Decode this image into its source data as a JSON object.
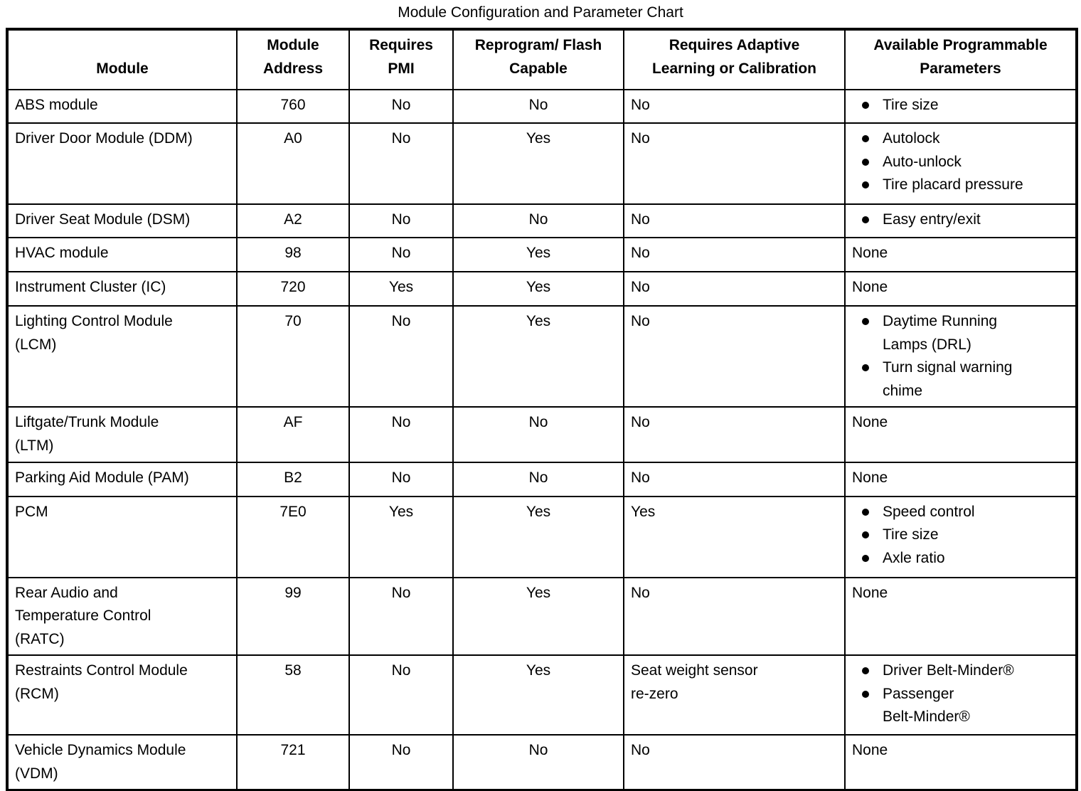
{
  "title": "Module Configuration and Parameter Chart",
  "table": {
    "headers": [
      "Module",
      "Module\nAddress",
      "Requires\nPMI",
      "Reprogram/ Flash\nCapable",
      "Requires Adaptive\nLearning or Calibration",
      "Available Programmable\nParameters"
    ],
    "rows": [
      {
        "module": "ABS module",
        "address": "760",
        "pmi": "No",
        "flash": "No",
        "adaptive": "No",
        "params": [
          "Tire size"
        ]
      },
      {
        "module": "Driver Door Module (DDM)",
        "address": "A0",
        "pmi": "No",
        "flash": "Yes",
        "adaptive": "No",
        "params": [
          "Autolock",
          "Auto-unlock",
          "Tire placard pressure"
        ]
      },
      {
        "module": "Driver Seat Module (DSM)",
        "address": "A2",
        "pmi": "No",
        "flash": "No",
        "adaptive": "No",
        "params": [
          "Easy entry/exit"
        ]
      },
      {
        "module": "HVAC module",
        "address": "98",
        "pmi": "No",
        "flash": "Yes",
        "adaptive": "No",
        "params": "None"
      },
      {
        "module": "Instrument Cluster (IC)",
        "address": "720",
        "pmi": "Yes",
        "flash": "Yes",
        "adaptive": "No",
        "params": "None"
      },
      {
        "module": "Lighting Control Module\n(LCM)",
        "address": "70",
        "pmi": "No",
        "flash": "Yes",
        "adaptive": "No",
        "params": [
          "Daytime Running\nLamps (DRL)",
          "Turn signal warning\nchime"
        ]
      },
      {
        "module": "Liftgate/Trunk Module\n(LTM)",
        "address": "AF",
        "pmi": "No",
        "flash": "No",
        "adaptive": "No",
        "params": "None"
      },
      {
        "module": "Parking Aid Module (PAM)",
        "address": "B2",
        "pmi": "No",
        "flash": "No",
        "adaptive": "No",
        "params": "None"
      },
      {
        "module": "PCM",
        "address": "7E0",
        "pmi": "Yes",
        "flash": "Yes",
        "adaptive": "Yes",
        "params": [
          "Speed control",
          "Tire size",
          "Axle ratio"
        ]
      },
      {
        "module": "Rear Audio and\nTemperature Control\n(RATC)",
        "address": "99",
        "pmi": "No",
        "flash": "Yes",
        "adaptive": "No",
        "params": "None"
      },
      {
        "module": "Restraints Control Module\n(RCM)",
        "address": "58",
        "pmi": "No",
        "flash": "Yes",
        "adaptive": "Seat weight sensor\nre-zero",
        "params": [
          "Driver Belt-Minder®",
          "Passenger\nBelt-Minder®"
        ]
      },
      {
        "module": "Vehicle Dynamics Module\n(VDM)",
        "address": "721",
        "pmi": "No",
        "flash": "No",
        "adaptive": "No",
        "params": "None"
      }
    ]
  }
}
